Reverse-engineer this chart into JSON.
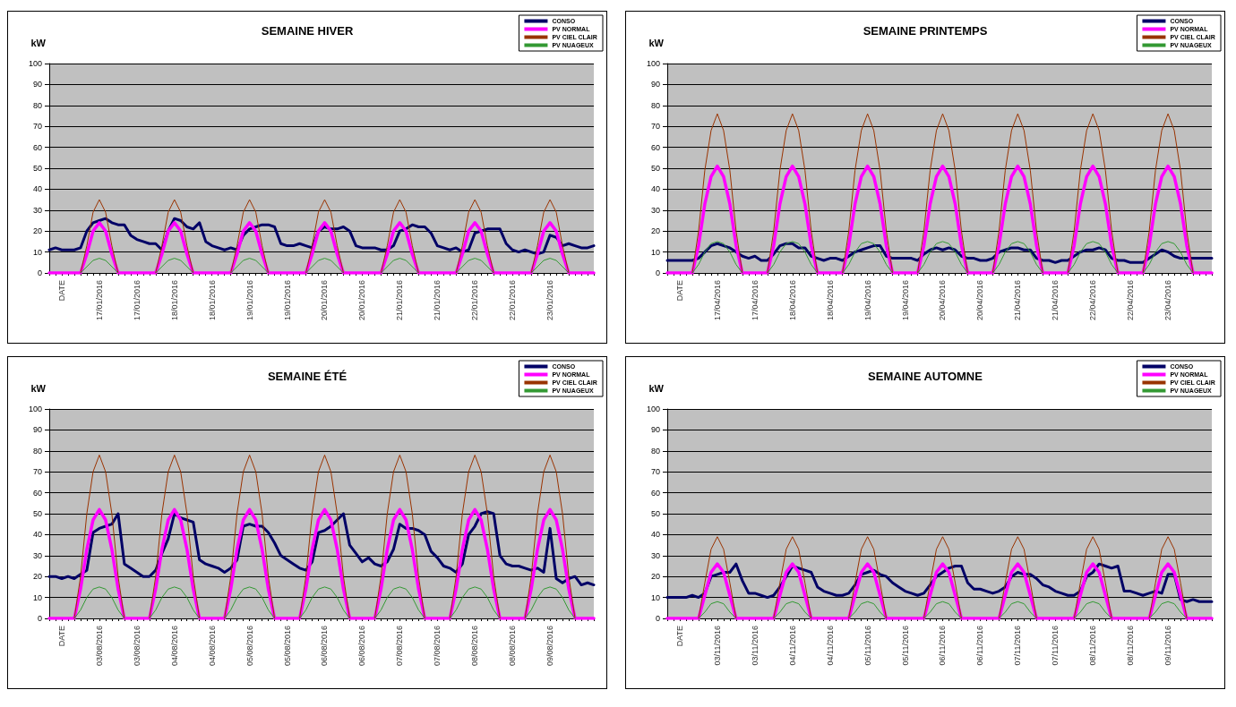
{
  "chart_data": [
    {
      "type": "line",
      "title": "SEMAINE HIVER",
      "ylabel": "kW",
      "ylim": [
        0,
        100
      ],
      "yticks": [
        0,
        10,
        20,
        30,
        40,
        50,
        60,
        70,
        80,
        90,
        100
      ],
      "grid": "y",
      "legend": "top right",
      "marker": "none",
      "line_style": "solid",
      "categories": [
        null,
        null,
        "DATE",
        null,
        null,
        null,
        null,
        null,
        "17/01/2016",
        null,
        null,
        null,
        null,
        null,
        "17/01/2016",
        null,
        null,
        null,
        null,
        null,
        "18/01/2016",
        null,
        null,
        null,
        null,
        null,
        "18/01/2016",
        null,
        null,
        null,
        null,
        null,
        "19/01/2016",
        null,
        null,
        null,
        null,
        null,
        "19/01/2016",
        null,
        null,
        null,
        null,
        null,
        "20/01/2016",
        null,
        null,
        null,
        null,
        null,
        "20/01/2016",
        null,
        null,
        null,
        null,
        null,
        "21/01/2016",
        null,
        null,
        null,
        null,
        null,
        "21/01/2016",
        null,
        null,
        null,
        null,
        null,
        "22/01/2016",
        null,
        null,
        null,
        null,
        null,
        "22/01/2016",
        null,
        null,
        null,
        null,
        null,
        "23/01/2016",
        null,
        null,
        null,
        null,
        null,
        null,
        null
      ],
      "series": [
        {
          "name": "CONSO",
          "color": "#000066",
          "values": [
            11,
            12,
            11,
            11,
            11,
            12,
            20,
            24,
            25,
            26,
            24,
            23,
            23,
            18,
            16,
            15,
            14,
            14,
            11,
            20,
            26,
            25,
            22,
            21,
            24,
            15,
            13,
            12,
            11,
            12,
            11,
            18,
            21,
            22,
            23,
            23,
            22,
            14,
            13,
            13,
            14,
            13,
            12,
            20,
            22,
            21,
            21,
            22,
            20,
            13,
            12,
            12,
            12,
            11,
            11,
            13,
            20,
            21,
            23,
            22,
            22,
            19,
            13,
            12,
            11,
            12,
            10,
            11,
            19,
            20,
            21,
            21,
            21,
            14,
            11,
            10,
            11,
            10,
            9,
            10,
            18,
            17,
            13,
            14,
            13,
            12,
            12,
            13
          ]
        },
        {
          "name": "PV NORMAL",
          "color": "#ff00ff",
          "values": [
            0,
            0,
            0,
            0,
            0,
            0,
            9,
            20,
            24,
            20,
            9,
            0,
            0,
            0,
            0,
            0,
            0,
            0,
            9,
            20,
            24,
            20,
            9,
            0,
            0,
            0,
            0,
            0,
            0,
            0,
            9,
            20,
            24,
            20,
            9,
            0,
            0,
            0,
            0,
            0,
            0,
            0,
            9,
            20,
            24,
            20,
            9,
            0,
            0,
            0,
            0,
            0,
            0,
            0,
            9,
            20,
            24,
            20,
            9,
            0,
            0,
            0,
            0,
            0,
            0,
            0,
            9,
            20,
            24,
            20,
            9,
            0,
            0,
            0,
            0,
            0,
            0,
            0,
            9,
            20,
            24,
            20,
            9,
            0,
            0,
            0,
            0,
            0
          ]
        },
        {
          "name": "PV CIEL CLAIR",
          "color": "#993300",
          "values": [
            null,
            null,
            null,
            null,
            null,
            0,
            13,
            29,
            35,
            29,
            13,
            0,
            null,
            null,
            null,
            null,
            null,
            0,
            13,
            29,
            35,
            29,
            13,
            0,
            null,
            null,
            null,
            null,
            null,
            0,
            13,
            29,
            35,
            29,
            13,
            0,
            null,
            null,
            null,
            null,
            null,
            0,
            13,
            29,
            35,
            29,
            13,
            0,
            null,
            null,
            null,
            null,
            null,
            0,
            13,
            29,
            35,
            29,
            13,
            0,
            null,
            null,
            null,
            null,
            null,
            0,
            13,
            29,
            35,
            29,
            13,
            0,
            null,
            null,
            null,
            null,
            null,
            0,
            13,
            29,
            35,
            29,
            13,
            0,
            null,
            null,
            null,
            null
          ]
        },
        {
          "name": "PV NUAGEUX",
          "color": "#339933",
          "values": [
            null,
            null,
            null,
            null,
            null,
            0,
            3,
            6,
            7,
            6,
            3,
            0,
            null,
            null,
            null,
            null,
            null,
            0,
            3,
            6,
            7,
            6,
            3,
            0,
            null,
            null,
            null,
            null,
            null,
            0,
            3,
            6,
            7,
            6,
            3,
            0,
            null,
            null,
            null,
            null,
            null,
            0,
            3,
            6,
            7,
            6,
            3,
            0,
            null,
            null,
            null,
            null,
            null,
            0,
            3,
            6,
            7,
            6,
            3,
            0,
            null,
            null,
            null,
            null,
            null,
            0,
            3,
            6,
            7,
            6,
            3,
            0,
            null,
            null,
            null,
            null,
            null,
            0,
            3,
            6,
            7,
            6,
            3,
            0,
            null,
            null,
            null,
            null
          ]
        }
      ]
    },
    {
      "type": "line",
      "title": "SEMAINE PRINTEMPS",
      "ylabel": "kW",
      "ylim": [
        0,
        100
      ],
      "yticks": [
        0,
        10,
        20,
        30,
        40,
        50,
        60,
        70,
        80,
        90,
        100
      ],
      "grid": "y",
      "legend": "top right",
      "marker": "none",
      "line_style": "solid",
      "categories": [
        null,
        null,
        "DATE",
        null,
        null,
        null,
        null,
        null,
        "17/04/2016",
        null,
        null,
        null,
        null,
        null,
        "17/04/2016",
        null,
        null,
        null,
        null,
        null,
        "18/04/2016",
        null,
        null,
        null,
        null,
        null,
        "18/04/2016",
        null,
        null,
        null,
        null,
        null,
        "19/04/2016",
        null,
        null,
        null,
        null,
        null,
        "19/04/2016",
        null,
        null,
        null,
        null,
        null,
        "20/04/2016",
        null,
        null,
        null,
        null,
        null,
        "20/04/2016",
        null,
        null,
        null,
        null,
        null,
        "21/04/2016",
        null,
        null,
        null,
        null,
        null,
        "21/04/2016",
        null,
        null,
        null,
        null,
        null,
        "22/04/2016",
        null,
        null,
        null,
        null,
        null,
        "22/04/2016",
        null,
        null,
        null,
        null,
        null,
        "23/04/2016",
        null,
        null,
        null,
        null,
        null,
        null,
        null
      ],
      "series": [
        {
          "name": "CONSO",
          "color": "#000066",
          "values": [
            6,
            6,
            6,
            6,
            6,
            7,
            10,
            13,
            14,
            13,
            12,
            10,
            8,
            7,
            8,
            6,
            6,
            9,
            13,
            14,
            14,
            12,
            12,
            8,
            7,
            6,
            7,
            7,
            6,
            8,
            10,
            11,
            12,
            13,
            13,
            8,
            7,
            7,
            7,
            7,
            6,
            9,
            11,
            12,
            11,
            12,
            11,
            8,
            7,
            7,
            6,
            6,
            7,
            10,
            11,
            12,
            12,
            11,
            11,
            7,
            6,
            6,
            5,
            6,
            6,
            8,
            10,
            11,
            11,
            12,
            11,
            7,
            6,
            6,
            5,
            5,
            5,
            7,
            9,
            11,
            10,
            8,
            7,
            7,
            7,
            7,
            7,
            7
          ]
        },
        {
          "name": "PV NORMAL",
          "color": "#ff00ff",
          "values": [
            0,
            0,
            0,
            0,
            0,
            13,
            33,
            46,
            51,
            46,
            33,
            13,
            0,
            0,
            0,
            0,
            0,
            13,
            33,
            46,
            51,
            46,
            33,
            13,
            0,
            0,
            0,
            0,
            0,
            13,
            33,
            46,
            51,
            46,
            33,
            13,
            0,
            0,
            0,
            0,
            0,
            13,
            33,
            46,
            51,
            46,
            33,
            13,
            0,
            0,
            0,
            0,
            0,
            13,
            33,
            46,
            51,
            46,
            33,
            13,
            0,
            0,
            0,
            0,
            0,
            13,
            33,
            46,
            51,
            46,
            33,
            13,
            0,
            0,
            0,
            0,
            0,
            13,
            33,
            46,
            51,
            46,
            33,
            13,
            0,
            0,
            0,
            0
          ]
        },
        {
          "name": "PV CIEL CLAIR",
          "color": "#993300",
          "values": [
            null,
            null,
            null,
            null,
            0,
            20,
            49,
            68,
            76,
            68,
            49,
            20,
            0,
            null,
            null,
            null,
            0,
            20,
            49,
            68,
            76,
            68,
            49,
            20,
            0,
            null,
            null,
            null,
            0,
            20,
            49,
            68,
            76,
            68,
            49,
            20,
            0,
            null,
            null,
            null,
            0,
            20,
            49,
            68,
            76,
            68,
            49,
            20,
            0,
            null,
            null,
            null,
            0,
            20,
            49,
            68,
            76,
            68,
            49,
            20,
            0,
            null,
            null,
            null,
            0,
            20,
            49,
            68,
            76,
            68,
            49,
            20,
            0,
            null,
            null,
            null,
            0,
            20,
            49,
            68,
            76,
            68,
            49,
            20,
            0,
            null,
            null,
            null
          ]
        },
        {
          "name": "PV NUAGEUX",
          "color": "#339933",
          "values": [
            null,
            null,
            null,
            null,
            0,
            4,
            10,
            14,
            15,
            14,
            10,
            4,
            0,
            null,
            null,
            null,
            0,
            4,
            10,
            14,
            15,
            14,
            10,
            4,
            0,
            null,
            null,
            null,
            0,
            4,
            10,
            14,
            15,
            14,
            10,
            4,
            0,
            null,
            null,
            null,
            0,
            4,
            10,
            14,
            15,
            14,
            10,
            4,
            0,
            null,
            null,
            null,
            0,
            4,
            10,
            14,
            15,
            14,
            10,
            4,
            0,
            null,
            null,
            null,
            0,
            4,
            10,
            14,
            15,
            14,
            10,
            4,
            0,
            null,
            null,
            null,
            0,
            4,
            10,
            14,
            15,
            14,
            10,
            4,
            0,
            null,
            null,
            null
          ]
        }
      ]
    },
    {
      "type": "line",
      "title": "SEMAINE ÉTÉ",
      "ylabel": "kW",
      "ylim": [
        0,
        100
      ],
      "yticks": [
        0,
        10,
        20,
        30,
        40,
        50,
        60,
        70,
        80,
        90,
        100
      ],
      "grid": "y",
      "legend": "top right",
      "marker": "none",
      "line_style": "solid",
      "categories": [
        null,
        null,
        "DATE",
        null,
        null,
        null,
        null,
        null,
        "03/08/2016",
        null,
        null,
        null,
        null,
        null,
        "03/08/2016",
        null,
        null,
        null,
        null,
        null,
        "04/08/2016",
        null,
        null,
        null,
        null,
        null,
        "04/08/2016",
        null,
        null,
        null,
        null,
        null,
        "05/08/2016",
        null,
        null,
        null,
        null,
        null,
        "05/08/2016",
        null,
        null,
        null,
        null,
        null,
        "06/08/2016",
        null,
        null,
        null,
        null,
        null,
        "06/08/2016",
        null,
        null,
        null,
        null,
        null,
        "07/08/2016",
        null,
        null,
        null,
        null,
        null,
        "07/08/2016",
        null,
        null,
        null,
        null,
        null,
        "08/08/2016",
        null,
        null,
        null,
        null,
        null,
        "08/08/2016",
        null,
        null,
        null,
        null,
        null,
        "09/08/2016",
        null,
        null,
        null,
        null,
        null,
        null,
        null
      ],
      "series": [
        {
          "name": "CONSO",
          "color": "#000066",
          "values": [
            20,
            20,
            19,
            20,
            19,
            21,
            23,
            41,
            43,
            44,
            45,
            50,
            26,
            24,
            22,
            20,
            20,
            23,
            31,
            38,
            50,
            48,
            47,
            46,
            28,
            26,
            25,
            24,
            22,
            24,
            28,
            44,
            45,
            44,
            44,
            41,
            36,
            30,
            28,
            26,
            24,
            23,
            27,
            41,
            42,
            44,
            47,
            50,
            35,
            31,
            27,
            29,
            26,
            25,
            27,
            33,
            45,
            43,
            43,
            42,
            40,
            32,
            29,
            25,
            24,
            22,
            26,
            40,
            44,
            50,
            51,
            50,
            30,
            26,
            25,
            25,
            24,
            23,
            24,
            22,
            43,
            19,
            17,
            19,
            20,
            16,
            17,
            16
          ]
        },
        {
          "name": "PV NORMAL",
          "color": "#ff00ff",
          "values": [
            0,
            0,
            0,
            0,
            0,
            14,
            33,
            47,
            52,
            47,
            33,
            14,
            0,
            0,
            0,
            0,
            0,
            14,
            33,
            47,
            52,
            47,
            33,
            14,
            0,
            0,
            0,
            0,
            0,
            14,
            33,
            47,
            52,
            47,
            33,
            14,
            0,
            0,
            0,
            0,
            0,
            14,
            33,
            47,
            52,
            47,
            33,
            14,
            0,
            0,
            0,
            0,
            0,
            14,
            33,
            47,
            52,
            47,
            33,
            14,
            0,
            0,
            0,
            0,
            0,
            14,
            33,
            47,
            52,
            47,
            33,
            14,
            0,
            0,
            0,
            0,
            0,
            14,
            33,
            47,
            52,
            47,
            33,
            14,
            0,
            0,
            0,
            0
          ]
        },
        {
          "name": "PV CIEL CLAIR",
          "color": "#993300",
          "values": [
            null,
            null,
            null,
            null,
            0,
            20,
            50,
            70,
            78,
            70,
            50,
            20,
            0,
            null,
            null,
            null,
            0,
            20,
            50,
            70,
            78,
            70,
            50,
            20,
            0,
            null,
            null,
            null,
            0,
            20,
            50,
            70,
            78,
            70,
            50,
            20,
            0,
            null,
            null,
            null,
            0,
            20,
            50,
            70,
            78,
            70,
            50,
            20,
            0,
            null,
            null,
            null,
            0,
            20,
            50,
            70,
            78,
            70,
            50,
            20,
            0,
            null,
            null,
            null,
            0,
            20,
            50,
            70,
            78,
            70,
            50,
            20,
            0,
            null,
            null,
            null,
            0,
            20,
            50,
            70,
            78,
            70,
            50,
            20,
            0,
            null,
            null,
            null
          ]
        },
        {
          "name": "PV NUAGEUX",
          "color": "#339933",
          "values": [
            null,
            null,
            null,
            null,
            0,
            4,
            10,
            14,
            15,
            14,
            10,
            4,
            0,
            null,
            null,
            null,
            0,
            4,
            10,
            14,
            15,
            14,
            10,
            4,
            0,
            null,
            null,
            null,
            0,
            4,
            10,
            14,
            15,
            14,
            10,
            4,
            0,
            null,
            null,
            null,
            0,
            4,
            10,
            14,
            15,
            14,
            10,
            4,
            0,
            null,
            null,
            null,
            0,
            4,
            10,
            14,
            15,
            14,
            10,
            4,
            0,
            null,
            null,
            null,
            0,
            4,
            10,
            14,
            15,
            14,
            10,
            4,
            0,
            null,
            null,
            null,
            0,
            4,
            10,
            14,
            15,
            14,
            10,
            4,
            0,
            null,
            null,
            null
          ]
        }
      ]
    },
    {
      "type": "line",
      "title": "SEMAINE AUTOMNE",
      "ylabel": "kW",
      "ylim": [
        0,
        100
      ],
      "yticks": [
        0,
        10,
        20,
        30,
        40,
        50,
        60,
        70,
        80,
        90,
        100
      ],
      "grid": "y",
      "legend": "top right",
      "marker": "none",
      "line_style": "solid",
      "categories": [
        null,
        null,
        "DATE",
        null,
        null,
        null,
        null,
        null,
        "03/11/2016",
        null,
        null,
        null,
        null,
        null,
        "03/11/2016",
        null,
        null,
        null,
        null,
        null,
        "04/11/2016",
        null,
        null,
        null,
        null,
        null,
        "04/11/2016",
        null,
        null,
        null,
        null,
        null,
        "05/11/2016",
        null,
        null,
        null,
        null,
        null,
        "05/11/2016",
        null,
        null,
        null,
        null,
        null,
        "06/11/2016",
        null,
        null,
        null,
        null,
        null,
        "06/11/2016",
        null,
        null,
        null,
        null,
        null,
        "07/11/2016",
        null,
        null,
        null,
        null,
        null,
        "07/11/2016",
        null,
        null,
        null,
        null,
        null,
        "08/11/2016",
        null,
        null,
        null,
        null,
        null,
        "08/11/2016",
        null,
        null,
        null,
        null,
        null,
        "09/11/2016",
        null,
        null,
        null,
        null,
        null,
        null,
        null
      ],
      "series": [
        {
          "name": "CONSO",
          "color": "#000066",
          "values": [
            10,
            10,
            10,
            10,
            11,
            10,
            12,
            20,
            21,
            22,
            22,
            26,
            18,
            12,
            12,
            11,
            10,
            11,
            15,
            20,
            25,
            24,
            23,
            22,
            15,
            13,
            12,
            11,
            11,
            12,
            16,
            21,
            22,
            23,
            21,
            20,
            17,
            15,
            13,
            12,
            11,
            12,
            16,
            20,
            22,
            24,
            25,
            25,
            17,
            14,
            14,
            13,
            12,
            13,
            15,
            20,
            22,
            21,
            21,
            19,
            16,
            15,
            13,
            12,
            11,
            11,
            13,
            20,
            22,
            26,
            25,
            24,
            25,
            13,
            13,
            12,
            11,
            12,
            13,
            12,
            21,
            21,
            9,
            8,
            9,
            8,
            8,
            8
          ]
        },
        {
          "name": "PV NORMAL",
          "color": "#ff00ff",
          "values": [
            0,
            0,
            0,
            0,
            0,
            0,
            11,
            22,
            26,
            22,
            11,
            0,
            0,
            0,
            0,
            0,
            0,
            0,
            11,
            22,
            26,
            22,
            11,
            0,
            0,
            0,
            0,
            0,
            0,
            0,
            11,
            22,
            26,
            22,
            11,
            0,
            0,
            0,
            0,
            0,
            0,
            0,
            11,
            22,
            26,
            22,
            11,
            0,
            0,
            0,
            0,
            0,
            0,
            0,
            11,
            22,
            26,
            22,
            11,
            0,
            0,
            0,
            0,
            0,
            0,
            0,
            11,
            22,
            26,
            22,
            11,
            0,
            0,
            0,
            0,
            0,
            0,
            0,
            11,
            22,
            26,
            22,
            11,
            0,
            0,
            0,
            0,
            0
          ]
        },
        {
          "name": "PV CIEL CLAIR",
          "color": "#993300",
          "values": [
            null,
            null,
            null,
            null,
            null,
            0,
            17,
            33,
            39,
            33,
            17,
            0,
            null,
            null,
            null,
            null,
            null,
            0,
            17,
            33,
            39,
            33,
            17,
            0,
            null,
            null,
            null,
            null,
            null,
            0,
            17,
            33,
            39,
            33,
            17,
            0,
            null,
            null,
            null,
            null,
            null,
            0,
            17,
            33,
            39,
            33,
            17,
            0,
            null,
            null,
            null,
            null,
            null,
            0,
            17,
            33,
            39,
            33,
            17,
            0,
            null,
            null,
            null,
            null,
            null,
            0,
            17,
            33,
            39,
            33,
            17,
            0,
            null,
            null,
            null,
            null,
            null,
            0,
            17,
            33,
            39,
            33,
            17,
            0,
            null,
            null,
            null,
            null
          ]
        },
        {
          "name": "PV NUAGEUX",
          "color": "#339933",
          "values": [
            null,
            null,
            null,
            null,
            null,
            0,
            3,
            7,
            8,
            7,
            3,
            0,
            null,
            null,
            null,
            null,
            null,
            0,
            3,
            7,
            8,
            7,
            3,
            0,
            null,
            null,
            null,
            null,
            null,
            0,
            3,
            7,
            8,
            7,
            3,
            0,
            null,
            null,
            null,
            null,
            null,
            0,
            3,
            7,
            8,
            7,
            3,
            0,
            null,
            null,
            null,
            null,
            null,
            0,
            3,
            7,
            8,
            7,
            3,
            0,
            null,
            null,
            null,
            null,
            null,
            0,
            3,
            7,
            8,
            7,
            3,
            0,
            null,
            null,
            null,
            null,
            null,
            0,
            3,
            7,
            8,
            7,
            3,
            0,
            null,
            null,
            null,
            null
          ]
        }
      ]
    }
  ]
}
